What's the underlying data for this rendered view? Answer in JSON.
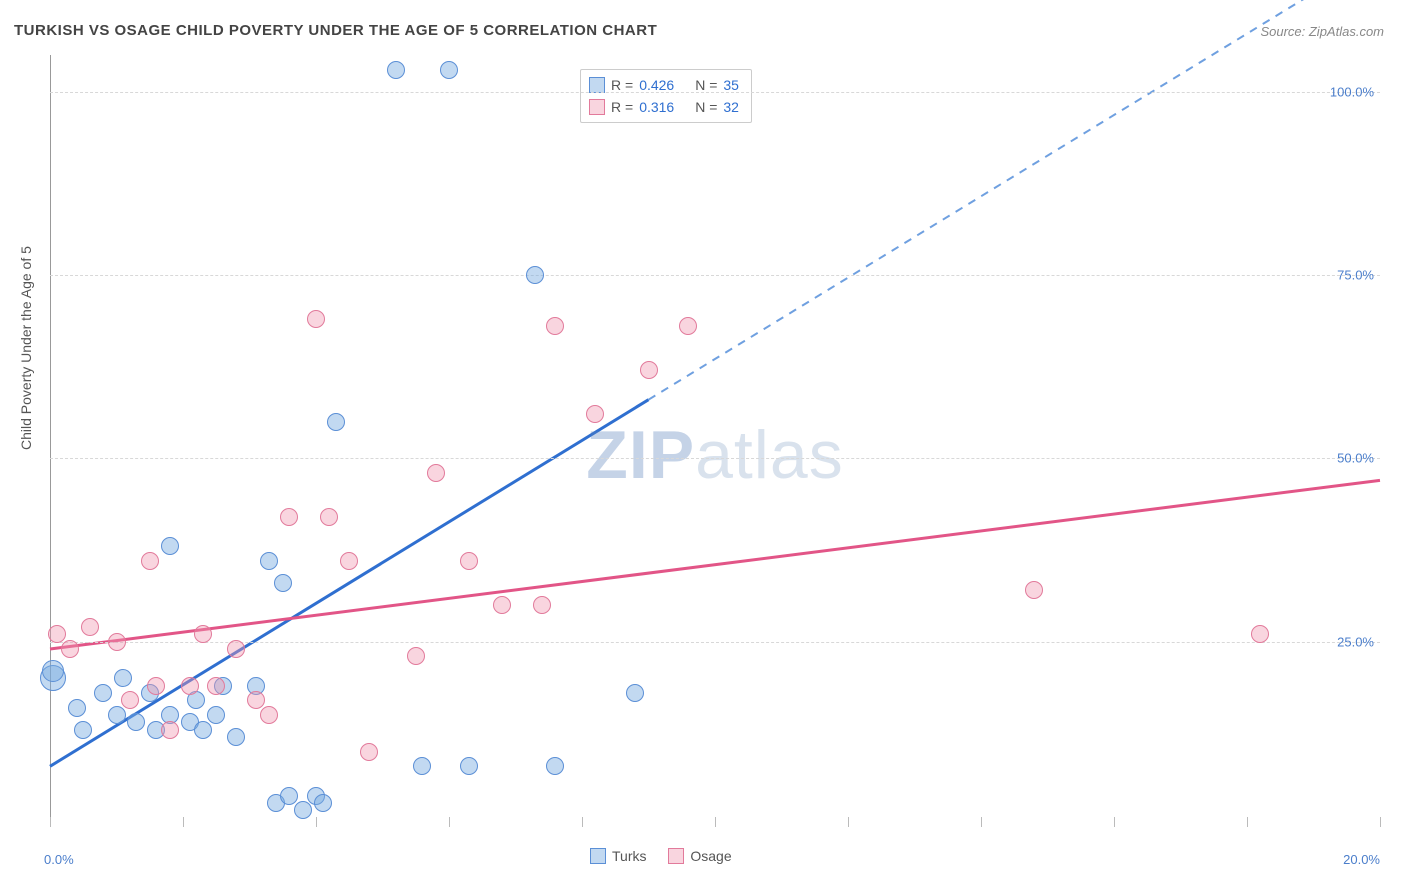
{
  "title": "TURKISH VS OSAGE CHILD POVERTY UNDER THE AGE OF 5 CORRELATION CHART",
  "source_label": "Source: ZipAtlas.com",
  "ylabel": "Child Poverty Under the Age of 5",
  "watermark": {
    "bold": "ZIP",
    "light": "atlas"
  },
  "chart": {
    "type": "scatter",
    "background_color": "#ffffff",
    "grid_color": "#d8d8d8",
    "xlim": [
      0,
      20
    ],
    "ylim": [
      0,
      105
    ],
    "ytick_values": [
      25,
      50,
      75,
      100
    ],
    "ytick_labels": [
      "25.0%",
      "50.0%",
      "75.0%",
      "100.0%"
    ],
    "xtick_values": [
      0,
      2,
      4,
      6,
      8,
      10,
      12,
      14,
      16,
      18,
      20
    ],
    "xlim_labels": {
      "left": "0.0%",
      "right": "20.0%"
    },
    "marker_radius": 9,
    "marker_radius_large": 13,
    "series": [
      {
        "name": "Turks",
        "fill": "rgba(120,170,225,0.45)",
        "stroke": "#5b8fd6",
        "line_color": "#2f6fd0",
        "line_dash_color": "#6fa0e0",
        "R": "0.426",
        "N": "35",
        "trend": {
          "x1": 0,
          "y1": 8,
          "x2": 9.0,
          "y2": 58,
          "extend_x2": 20,
          "extend_y2": 119
        },
        "points": [
          {
            "x": 0.05,
            "y": 20,
            "r": 13
          },
          {
            "x": 0.05,
            "y": 21,
            "r": 11
          },
          {
            "x": 0.4,
            "y": 16
          },
          {
            "x": 0.5,
            "y": 13
          },
          {
            "x": 0.8,
            "y": 18
          },
          {
            "x": 1.0,
            "y": 15
          },
          {
            "x": 1.1,
            "y": 20
          },
          {
            "x": 1.3,
            "y": 14
          },
          {
            "x": 1.5,
            "y": 18
          },
          {
            "x": 1.6,
            "y": 13
          },
          {
            "x": 1.8,
            "y": 15
          },
          {
            "x": 1.8,
            "y": 38
          },
          {
            "x": 2.1,
            "y": 14
          },
          {
            "x": 2.2,
            "y": 17
          },
          {
            "x": 2.3,
            "y": 13
          },
          {
            "x": 2.5,
            "y": 15
          },
          {
            "x": 2.6,
            "y": 19
          },
          {
            "x": 2.8,
            "y": 12
          },
          {
            "x": 3.1,
            "y": 19
          },
          {
            "x": 3.3,
            "y": 36
          },
          {
            "x": 3.4,
            "y": 3
          },
          {
            "x": 3.5,
            "y": 33
          },
          {
            "x": 3.6,
            "y": 4
          },
          {
            "x": 3.8,
            "y": 2
          },
          {
            "x": 4.0,
            "y": 4
          },
          {
            "x": 4.1,
            "y": 3
          },
          {
            "x": 4.3,
            "y": 55
          },
          {
            "x": 5.2,
            "y": 103
          },
          {
            "x": 5.6,
            "y": 8
          },
          {
            "x": 6.0,
            "y": 103
          },
          {
            "x": 6.3,
            "y": 8
          },
          {
            "x": 7.3,
            "y": 75
          },
          {
            "x": 7.6,
            "y": 8
          },
          {
            "x": 8.8,
            "y": 18
          }
        ]
      },
      {
        "name": "Osage",
        "fill": "rgba(240,150,175,0.40)",
        "stroke": "#e27a9b",
        "line_color": "#e25587",
        "R": "0.316",
        "N": "32",
        "trend": {
          "x1": 0,
          "y1": 24,
          "x2": 20,
          "y2": 47
        },
        "points": [
          {
            "x": 0.1,
            "y": 26
          },
          {
            "x": 0.3,
            "y": 24
          },
          {
            "x": 0.6,
            "y": 27
          },
          {
            "x": 1.0,
            "y": 25
          },
          {
            "x": 1.2,
            "y": 17
          },
          {
            "x": 1.5,
            "y": 36
          },
          {
            "x": 1.6,
            "y": 19
          },
          {
            "x": 1.8,
            "y": 13
          },
          {
            "x": 2.1,
            "y": 19
          },
          {
            "x": 2.3,
            "y": 26
          },
          {
            "x": 2.5,
            "y": 19
          },
          {
            "x": 2.8,
            "y": 24
          },
          {
            "x": 3.1,
            "y": 17
          },
          {
            "x": 3.3,
            "y": 15
          },
          {
            "x": 3.6,
            "y": 42
          },
          {
            "x": 4.0,
            "y": 69
          },
          {
            "x": 4.2,
            "y": 42
          },
          {
            "x": 4.5,
            "y": 36
          },
          {
            "x": 4.8,
            "y": 10
          },
          {
            "x": 5.5,
            "y": 23
          },
          {
            "x": 5.8,
            "y": 48
          },
          {
            "x": 6.3,
            "y": 36
          },
          {
            "x": 6.8,
            "y": 30
          },
          {
            "x": 7.4,
            "y": 30
          },
          {
            "x": 7.6,
            "y": 68
          },
          {
            "x": 8.2,
            "y": 56
          },
          {
            "x": 9.0,
            "y": 62
          },
          {
            "x": 9.6,
            "y": 68
          },
          {
            "x": 14.8,
            "y": 32
          },
          {
            "x": 18.2,
            "y": 26
          }
        ]
      }
    ]
  },
  "stats_legend_labels": {
    "R": "R =",
    "N": "N ="
  }
}
